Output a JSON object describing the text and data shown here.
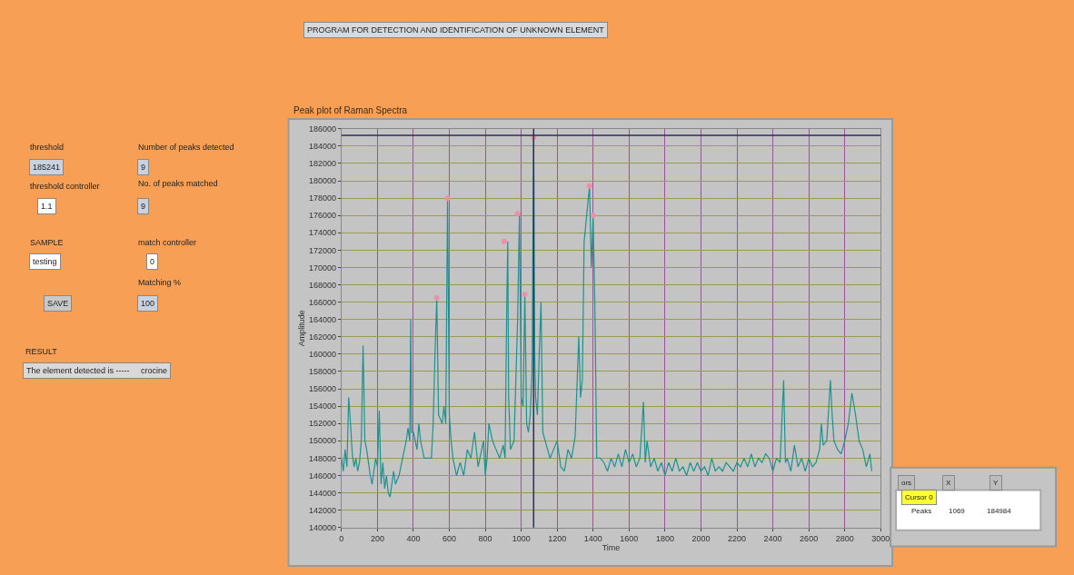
{
  "chart_data": {
    "type": "line",
    "title": "Peak plot of Raman Spectra",
    "xlabel": "Time",
    "ylabel": "Amplitude",
    "xlim": [
      0,
      3000
    ],
    "xticks": [
      0,
      200,
      400,
      600,
      800,
      1000,
      1200,
      1400,
      1600,
      1800,
      2000,
      2200,
      2400,
      2600,
      2800,
      3000
    ],
    "ylim": [
      140000,
      186000
    ],
    "yticks": [
      140000,
      142000,
      144000,
      146000,
      148000,
      150000,
      152000,
      154000,
      156000,
      158000,
      160000,
      162000,
      164000,
      166000,
      168000,
      170000,
      172000,
      174000,
      176000,
      178000,
      180000,
      182000,
      184000,
      186000
    ],
    "grid": true,
    "series": [
      {
        "color": "#1f9290",
        "x": [
          0,
          10,
          20,
          30,
          40,
          50,
          60,
          70,
          80,
          90,
          100,
          110,
          120,
          130,
          140,
          150,
          160,
          170,
          180,
          190,
          200,
          210,
          220,
          230,
          240,
          250,
          260,
          270,
          280,
          290,
          300,
          320,
          340,
          360,
          370,
          380,
          385,
          390,
          400,
          410,
          420,
          430,
          440,
          450,
          460,
          480,
          500,
          510,
          520,
          530,
          540,
          560,
          570,
          580,
          590,
          600,
          610,
          620,
          640,
          660,
          680,
          700,
          720,
          740,
          760,
          780,
          790,
          800,
          810,
          820,
          840,
          860,
          880,
          900,
          910,
          920,
          925,
          930,
          940,
          960,
          970,
          980,
          990,
          1000,
          1010,
          1020,
          1030,
          1040,
          1050,
          1060,
          1069,
          1075,
          1080,
          1090,
          1100,
          1110,
          1120,
          1140,
          1160,
          1180,
          1200,
          1220,
          1240,
          1260,
          1280,
          1300,
          1320,
          1330,
          1340,
          1350,
          1380,
          1390,
          1400,
          1410,
          1420,
          1440,
          1460,
          1480,
          1500,
          1520,
          1540,
          1560,
          1580,
          1600,
          1620,
          1640,
          1660,
          1680,
          1690,
          1700,
          1720,
          1740,
          1760,
          1780,
          1800,
          1820,
          1840,
          1860,
          1880,
          1900,
          1920,
          1940,
          1960,
          1980,
          2000,
          2020,
          2040,
          2060,
          2080,
          2100,
          2120,
          2140,
          2160,
          2180,
          2200,
          2220,
          2240,
          2260,
          2280,
          2300,
          2320,
          2340,
          2360,
          2380,
          2400,
          2420,
          2440,
          2460,
          2470,
          2480,
          2500,
          2520,
          2540,
          2560,
          2580,
          2600,
          2620,
          2640,
          2660,
          2670,
          2680,
          2700,
          2720,
          2730,
          2740,
          2760,
          2780,
          2800,
          2820,
          2840,
          2860,
          2880,
          2900,
          2920,
          2940,
          2950
        ],
        "values": [
          148000,
          146500,
          149000,
          147000,
          155000,
          152000,
          148500,
          147000,
          148000,
          146500,
          147500,
          150000,
          161000,
          150000,
          149000,
          147500,
          146000,
          145000,
          146500,
          148000,
          147000,
          153500,
          145000,
          147500,
          144500,
          146000,
          144000,
          143500,
          145000,
          146500,
          145000,
          146000,
          148000,
          150000,
          151500,
          150000,
          164000,
          151000,
          151000,
          150000,
          149000,
          152000,
          150000,
          149000,
          148000,
          148000,
          148000,
          152000,
          160000,
          166500,
          153000,
          152000,
          154000,
          152000,
          178000,
          153000,
          150000,
          148000,
          146000,
          147500,
          146000,
          149000,
          148000,
          151000,
          147000,
          149000,
          150000,
          146000,
          148000,
          152000,
          150000,
          149000,
          148000,
          149500,
          148000,
          166500,
          173000,
          155000,
          149000,
          150000,
          157000,
          164000,
          176200,
          155000,
          154000,
          166900,
          152000,
          151000,
          153000,
          158000,
          185000,
          160000,
          155000,
          153000,
          160000,
          166000,
          151000,
          149500,
          148000,
          149000,
          150000,
          147000,
          146500,
          149000,
          148000,
          150500,
          162000,
          155000,
          157000,
          173000,
          179400,
          170000,
          176000,
          165000,
          148000,
          148000,
          147500,
          146500,
          148000,
          147000,
          148500,
          147000,
          149000,
          147500,
          148500,
          147000,
          148000,
          154500,
          147500,
          150000,
          147000,
          148000,
          146500,
          147500,
          146000,
          147500,
          146500,
          148000,
          146500,
          147000,
          146000,
          147500,
          146500,
          147500,
          146500,
          147000,
          146000,
          148000,
          146500,
          147000,
          146500,
          147500,
          147000,
          146500,
          147500,
          147000,
          148000,
          147000,
          148500,
          147000,
          148000,
          147500,
          148500,
          148000,
          146500,
          148000,
          147500,
          157000,
          147500,
          148000,
          146500,
          149500,
          147000,
          148000,
          146500,
          148000,
          147000,
          147500,
          149000,
          152000,
          149500,
          150000,
          157000,
          153000,
          150000,
          149000,
          148500,
          150000,
          152000,
          155500,
          153000,
          150000,
          149000,
          147000,
          148500,
          146500
        ]
      },
      {
        "type": "scatter",
        "color": "#ee8fa8",
        "x": [
          530,
          590,
          905,
          980,
          1020,
          1069,
          1380,
          1400
        ],
        "values": [
          166500,
          178000,
          173000,
          176200,
          166900,
          185000,
          179400,
          176000
        ]
      }
    ],
    "ref_lines": [
      {
        "axis": "y",
        "value": 185241,
        "color": "#2e2e5e"
      },
      {
        "axis": "x",
        "value": 1069,
        "color": "#2e2e5e"
      }
    ],
    "annotations": [
      "PROGRAM FOR DETECTION AND IDENTIFICATION OF UNKNOWN ELEMENT",
      "threshold",
      "185241",
      "Number of peaks detected",
      "9",
      "threshold controller",
      "1.1",
      "No. of peaks matched",
      "9",
      "SAMPLE",
      "testing",
      "match controller",
      "0",
      "SAVE",
      "Matching %",
      "100",
      "RESULT",
      "The element detected is -----     crocine",
      "ors",
      "X",
      "Y",
      "Cursor 0",
      "Peaks",
      "1069",
      "184984"
    ]
  }
}
